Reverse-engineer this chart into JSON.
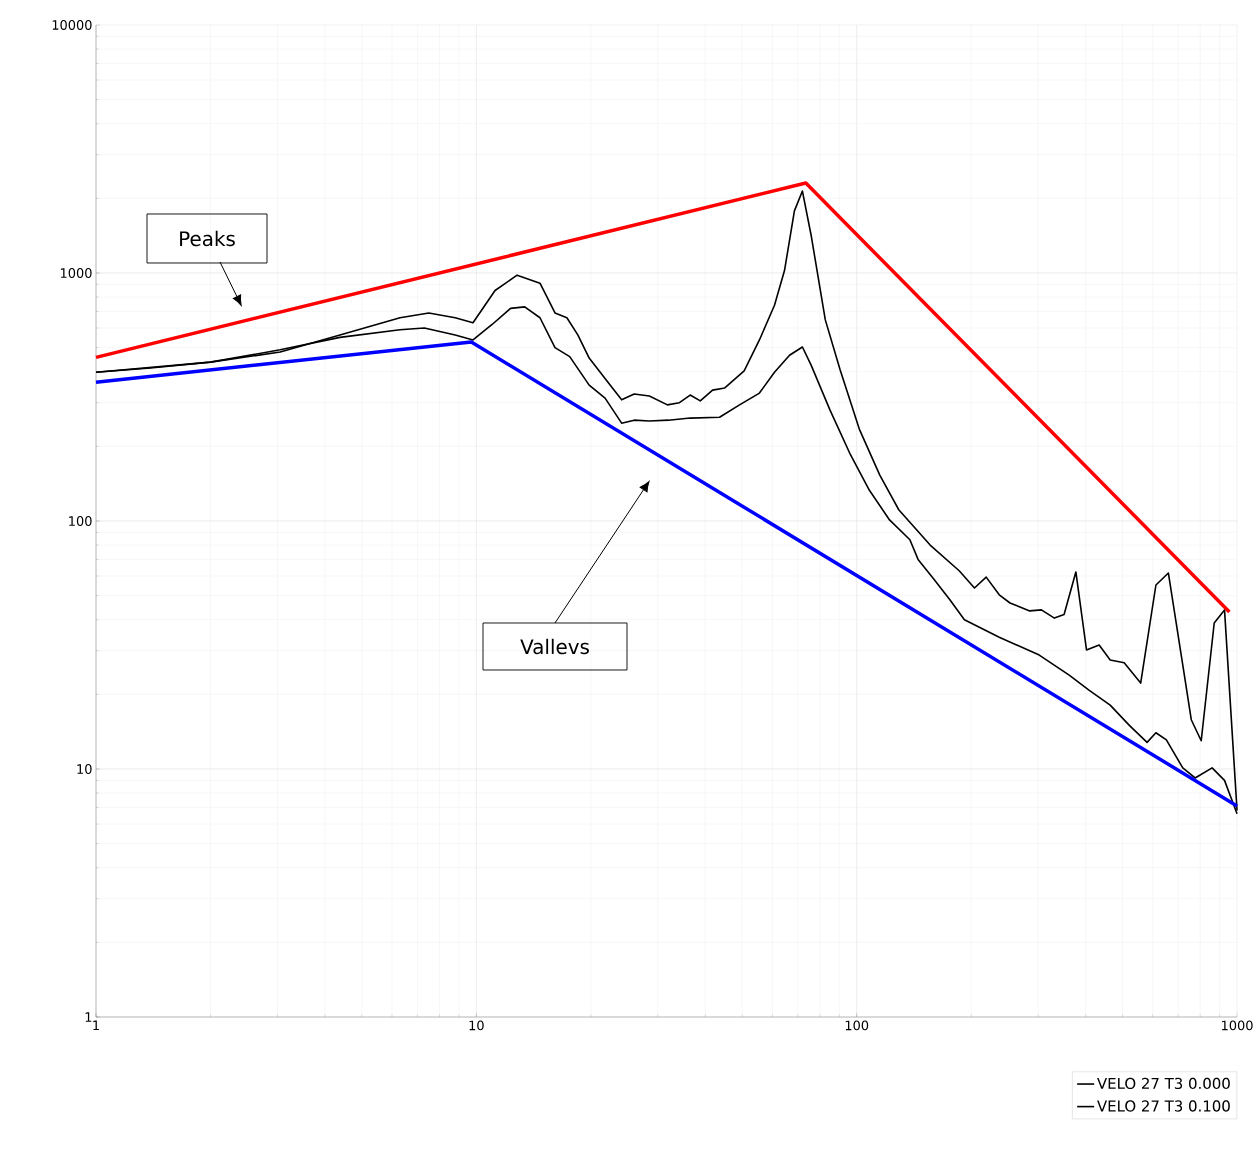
{
  "chart_data": {
    "type": "line",
    "log": "xy",
    "grid": true,
    "legend": "bottom right",
    "xlim": [
      1,
      1000
    ],
    "ylim": [
      1,
      10000
    ],
    "xticks": [
      1,
      10,
      100,
      1000
    ],
    "yticks": [
      1,
      10,
      100,
      1000,
      10000
    ],
    "series": [
      {
        "name": "VELO 27 T3 0.000",
        "color": "#000000",
        "x": [
          1,
          1.39,
          2.0,
          3.05,
          4.38,
          6.3,
          7.5,
          8.8,
          9.8,
          11.2,
          12.8,
          14.7,
          16.1,
          17.3,
          18.5,
          19.8,
          22.5,
          24.1,
          26.0,
          28.5,
          31.8,
          34.2,
          36.5,
          38.8,
          41.8,
          45,
          50.6,
          55.5,
          60.8,
          64.6,
          68.6,
          72,
          75.9,
          82.7,
          90.4,
          101.8,
          115,
          129,
          156,
          186,
          204,
          219,
          237,
          253,
          285,
          306,
          331,
          351,
          377,
          402,
          434,
          464,
          505,
          558,
          612,
          660,
          720,
          758,
          805,
          871,
          927,
          1000
        ],
        "values": [
          398,
          414,
          437,
          480,
          562,
          660,
          690,
          660,
          630,
          850,
          980,
          910,
          690,
          660,
          562,
          454,
          353,
          308,
          325,
          319,
          294,
          300,
          322,
          305,
          337,
          344,
          403,
          537,
          741,
          1023,
          1780,
          2140,
          1420,
          647,
          408,
          233,
          153,
          111,
          80,
          63,
          53.7,
          59.4,
          50.4,
          46.7,
          43.4,
          43.8,
          40.6,
          42,
          62.3,
          30.2,
          31.6,
          27.5,
          26.8,
          22.2,
          55.2,
          61.7,
          26.3,
          15.8,
          13.0,
          38.8,
          43.8,
          6.8
        ]
      },
      {
        "name": "VELO 27 T3 0.100",
        "color": "#000000",
        "x": [
          1,
          2.0,
          3.05,
          4.38,
          6.3,
          7.3,
          8.8,
          9.8,
          11.0,
          12.3,
          13.4,
          14.7,
          16.1,
          17.6,
          19.8,
          21.8,
          24.1,
          26,
          28.5,
          32,
          36.5,
          43.6,
          49.2,
          55.5,
          60.8,
          66.6,
          72,
          75.9,
          85.1,
          96.3,
          108,
          122,
          138,
          145,
          160,
          176,
          192,
          237,
          302,
          362,
          408,
          464,
          521,
          580,
          612,
          652,
          720,
          776,
          860,
          927,
          1000
        ],
        "values": [
          398,
          437,
          490,
          550,
          590,
          600,
          562,
          537,
          620,
          720,
          730,
          660,
          500,
          460,
          353,
          313,
          248,
          255,
          253,
          255,
          260,
          262,
          294,
          328,
          398,
          466,
          503,
          425,
          280,
          185,
          133,
          101,
          84,
          70,
          58,
          48,
          40,
          34,
          28.8,
          23.9,
          20.8,
          18.1,
          15.0,
          12.8,
          14.0,
          13.1,
          10.1,
          9.2,
          10.1,
          9.0,
          6.6
        ]
      },
      {
        "color": "#ff0000",
        "x": [
          1,
          73.5,
          955
        ],
        "values": [
          457,
          2305,
          43
        ]
      },
      {
        "color": "#0000ff",
        "x": [
          1,
          9.7,
          1000
        ],
        "values": [
          363,
          527,
          7.1
        ]
      }
    ],
    "annotations": [
      "Peaks",
      "Vallevs"
    ]
  }
}
